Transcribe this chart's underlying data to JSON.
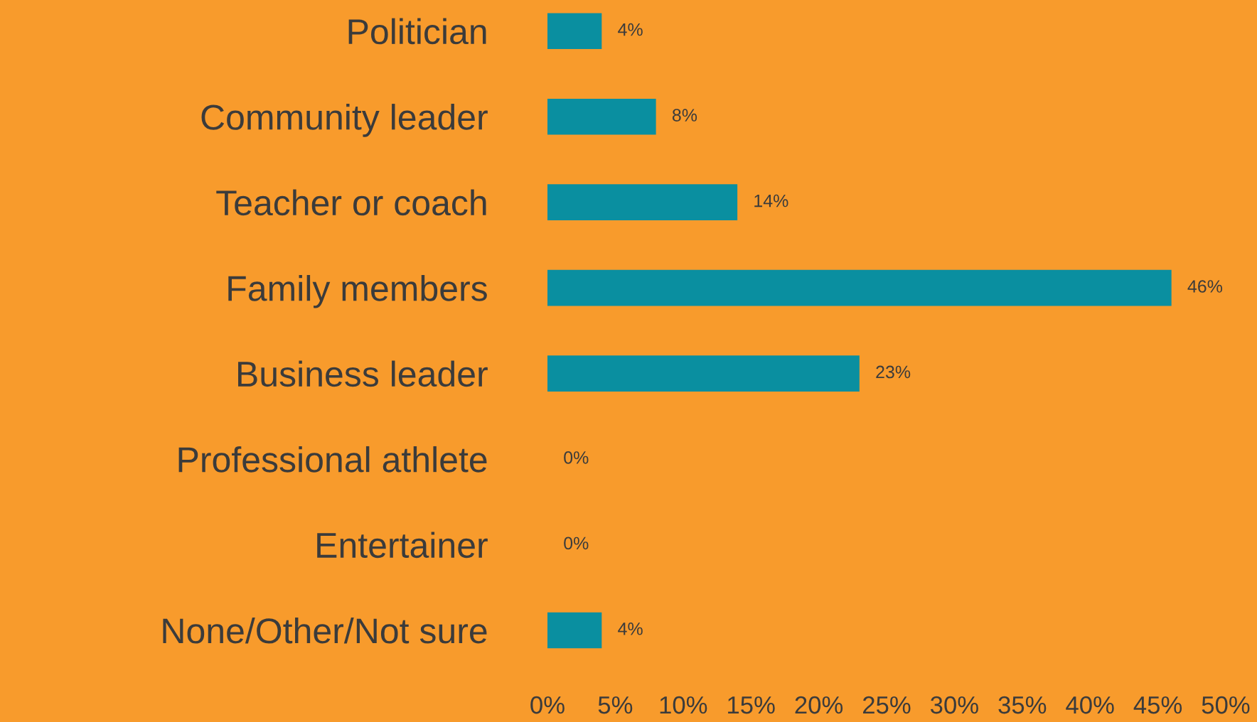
{
  "chart_data": {
    "type": "bar",
    "orientation": "horizontal",
    "categories": [
      "Politician",
      "Community leader",
      "Teacher or coach",
      "Family members",
      "Business leader",
      "Professional athlete",
      "Entertainer",
      "None/Other/Not sure"
    ],
    "values": [
      4,
      8,
      14,
      46,
      23,
      0,
      0,
      4
    ],
    "value_labels": [
      "4%",
      "8%",
      "14%",
      "46%",
      "23%",
      "0%",
      "0%",
      "4%"
    ],
    "color": "#0a8fa0",
    "xlim": [
      0,
      50
    ],
    "xticks": [
      {
        "value": 0,
        "label": "0%"
      },
      {
        "value": 5,
        "label": "5%"
      },
      {
        "value": 10,
        "label": "10%"
      },
      {
        "value": 15,
        "label": "15%"
      },
      {
        "value": 20,
        "label": "20%"
      },
      {
        "value": 25,
        "label": "25%"
      },
      {
        "value": 30,
        "label": "30%"
      },
      {
        "value": 35,
        "label": "35%"
      },
      {
        "value": 40,
        "label": "40%"
      },
      {
        "value": 45,
        "label": "45%"
      },
      {
        "value": 50,
        "label": "50%"
      }
    ],
    "grid": false,
    "legend": false
  }
}
